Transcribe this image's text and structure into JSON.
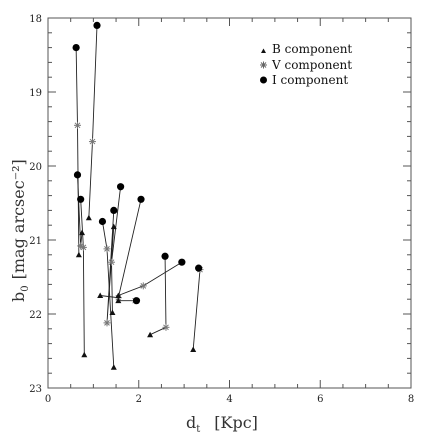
{
  "chart_data": {
    "type": "scatter",
    "title": "",
    "xlabel_main": "d",
    "xlabel_sub": "t",
    "xlabel_unit": "[Kpc]",
    "ylabel_main": "b",
    "ylabel_sub": "0",
    "ylabel_unit": "[mag arcsec⁻²]",
    "xlim": [
      0,
      8
    ],
    "ylim": [
      23,
      18
    ],
    "x_ticks": [
      0,
      2,
      4,
      6,
      8
    ],
    "x_tick_labels": [
      "0",
      "2",
      "4",
      "6",
      "8"
    ],
    "y_ticks": [
      18,
      19,
      20,
      21,
      22,
      23
    ],
    "y_tick_labels": [
      "18",
      "19",
      "20",
      "21",
      "22",
      "23"
    ],
    "legend_position": "top-right",
    "series": [
      {
        "name": "B component",
        "marker": "triangle"
      },
      {
        "name": "V component",
        "marker": "star"
      },
      {
        "name": "I component",
        "marker": "circle"
      }
    ],
    "galaxies": [
      {
        "points": [
          [
            0.68,
            21.2
          ],
          [
            0.65,
            19.45
          ],
          [
            0.62,
            18.4
          ]
        ]
      },
      {
        "points": [
          [
            0.8,
            22.55
          ],
          [
            0.78,
            21.1
          ],
          [
            0.72,
            20.45
          ]
        ]
      },
      {
        "points": [
          [
            0.75,
            20.9
          ],
          [
            0.72,
            21.08
          ],
          [
            0.65,
            20.12
          ]
        ]
      },
      {
        "points": [
          [
            0.9,
            20.7
          ],
          [
            0.98,
            19.67
          ],
          [
            1.08,
            18.1
          ]
        ]
      },
      {
        "points": [
          [
            1.45,
            22.72
          ],
          [
            1.3,
            21.12
          ],
          [
            1.2,
            20.75
          ]
        ]
      },
      {
        "points": [
          [
            1.45,
            20.82
          ],
          [
            1.3,
            22.12
          ],
          [
            1.45,
            20.6
          ]
        ]
      },
      {
        "points": [
          [
            1.42,
            21.98
          ],
          [
            1.4,
            21.3
          ],
          [
            1.6,
            20.28
          ]
        ]
      },
      {
        "points": [
          [
            1.15,
            21.75
          ],
          [
            1.55,
            21.78
          ],
          [
            2.05,
            20.45
          ]
        ]
      },
      {
        "points": [
          [
            1.55,
            21.82
          ],
          [
            1.92,
            21.82
          ],
          [
            1.95,
            21.82
          ]
        ]
      },
      {
        "points": [
          [
            2.25,
            22.28
          ],
          [
            2.6,
            22.18
          ],
          [
            2.58,
            21.22
          ]
        ]
      },
      {
        "points": [
          [
            1.55,
            21.75
          ],
          [
            2.1,
            21.62
          ],
          [
            2.95,
            21.3
          ]
        ]
      },
      {
        "points": [
          [
            3.2,
            22.48
          ],
          [
            3.35,
            21.4
          ],
          [
            3.32,
            21.38
          ]
        ]
      }
    ]
  }
}
